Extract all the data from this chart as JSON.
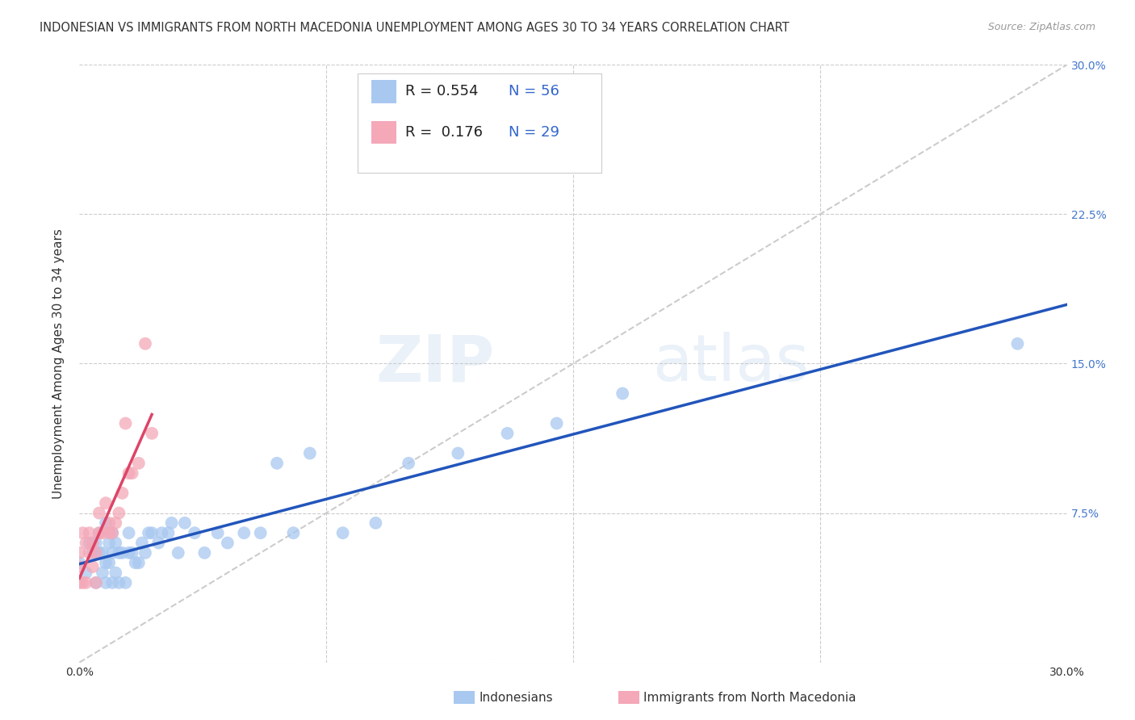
{
  "title": "INDONESIAN VS IMMIGRANTS FROM NORTH MACEDONIA UNEMPLOYMENT AMONG AGES 30 TO 34 YEARS CORRELATION CHART",
  "source": "Source: ZipAtlas.com",
  "ylabel": "Unemployment Among Ages 30 to 34 years",
  "xlim": [
    0.0,
    0.3
  ],
  "ylim": [
    0.0,
    0.3
  ],
  "ytick_positions": [
    0.0,
    0.075,
    0.15,
    0.225,
    0.3
  ],
  "right_ytick_labels": [
    "30.0%",
    "22.5%",
    "15.0%",
    "7.5%",
    "0.0%"
  ],
  "grid_color": "#cccccc",
  "background_color": "#ffffff",
  "watermark_zip": "ZIP",
  "watermark_atlas": "atlas",
  "blue_color": "#a8c8f0",
  "pink_color": "#f4a8b8",
  "blue_line_color": "#2255bb",
  "pink_line_color": "#dd4466",
  "dashed_line_color": "#cccccc",
  "indonesian_x": [
    0.0,
    0.002,
    0.003,
    0.004,
    0.005,
    0.005,
    0.006,
    0.006,
    0.007,
    0.007,
    0.008,
    0.008,
    0.008,
    0.009,
    0.009,
    0.01,
    0.01,
    0.01,
    0.011,
    0.011,
    0.012,
    0.012,
    0.013,
    0.014,
    0.015,
    0.015,
    0.016,
    0.017,
    0.018,
    0.019,
    0.02,
    0.021,
    0.022,
    0.024,
    0.025,
    0.027,
    0.028,
    0.03,
    0.032,
    0.035,
    0.038,
    0.042,
    0.045,
    0.05,
    0.055,
    0.06,
    0.065,
    0.07,
    0.08,
    0.09,
    0.1,
    0.115,
    0.13,
    0.145,
    0.165,
    0.285
  ],
  "indonesian_y": [
    0.05,
    0.045,
    0.06,
    0.055,
    0.04,
    0.06,
    0.055,
    0.065,
    0.045,
    0.055,
    0.04,
    0.05,
    0.07,
    0.05,
    0.06,
    0.04,
    0.055,
    0.065,
    0.045,
    0.06,
    0.04,
    0.055,
    0.055,
    0.04,
    0.055,
    0.065,
    0.055,
    0.05,
    0.05,
    0.06,
    0.055,
    0.065,
    0.065,
    0.06,
    0.065,
    0.065,
    0.07,
    0.055,
    0.07,
    0.065,
    0.055,
    0.065,
    0.06,
    0.065,
    0.065,
    0.1,
    0.065,
    0.105,
    0.065,
    0.07,
    0.1,
    0.105,
    0.115,
    0.12,
    0.135,
    0.16
  ],
  "macedonian_x": [
    0.0,
    0.0,
    0.0,
    0.001,
    0.001,
    0.002,
    0.002,
    0.003,
    0.003,
    0.004,
    0.004,
    0.005,
    0.005,
    0.006,
    0.006,
    0.007,
    0.008,
    0.009,
    0.009,
    0.01,
    0.011,
    0.012,
    0.013,
    0.014,
    0.015,
    0.016,
    0.018,
    0.02,
    0.022
  ],
  "macedonian_y": [
    0.04,
    0.048,
    0.055,
    0.04,
    0.065,
    0.04,
    0.06,
    0.055,
    0.065,
    0.048,
    0.06,
    0.04,
    0.055,
    0.065,
    0.075,
    0.065,
    0.08,
    0.065,
    0.07,
    0.065,
    0.07,
    0.075,
    0.085,
    0.12,
    0.095,
    0.095,
    0.1,
    0.16,
    0.115
  ],
  "title_fontsize": 10.5,
  "axis_label_fontsize": 11,
  "tick_fontsize": 10,
  "legend_fontsize": 13
}
